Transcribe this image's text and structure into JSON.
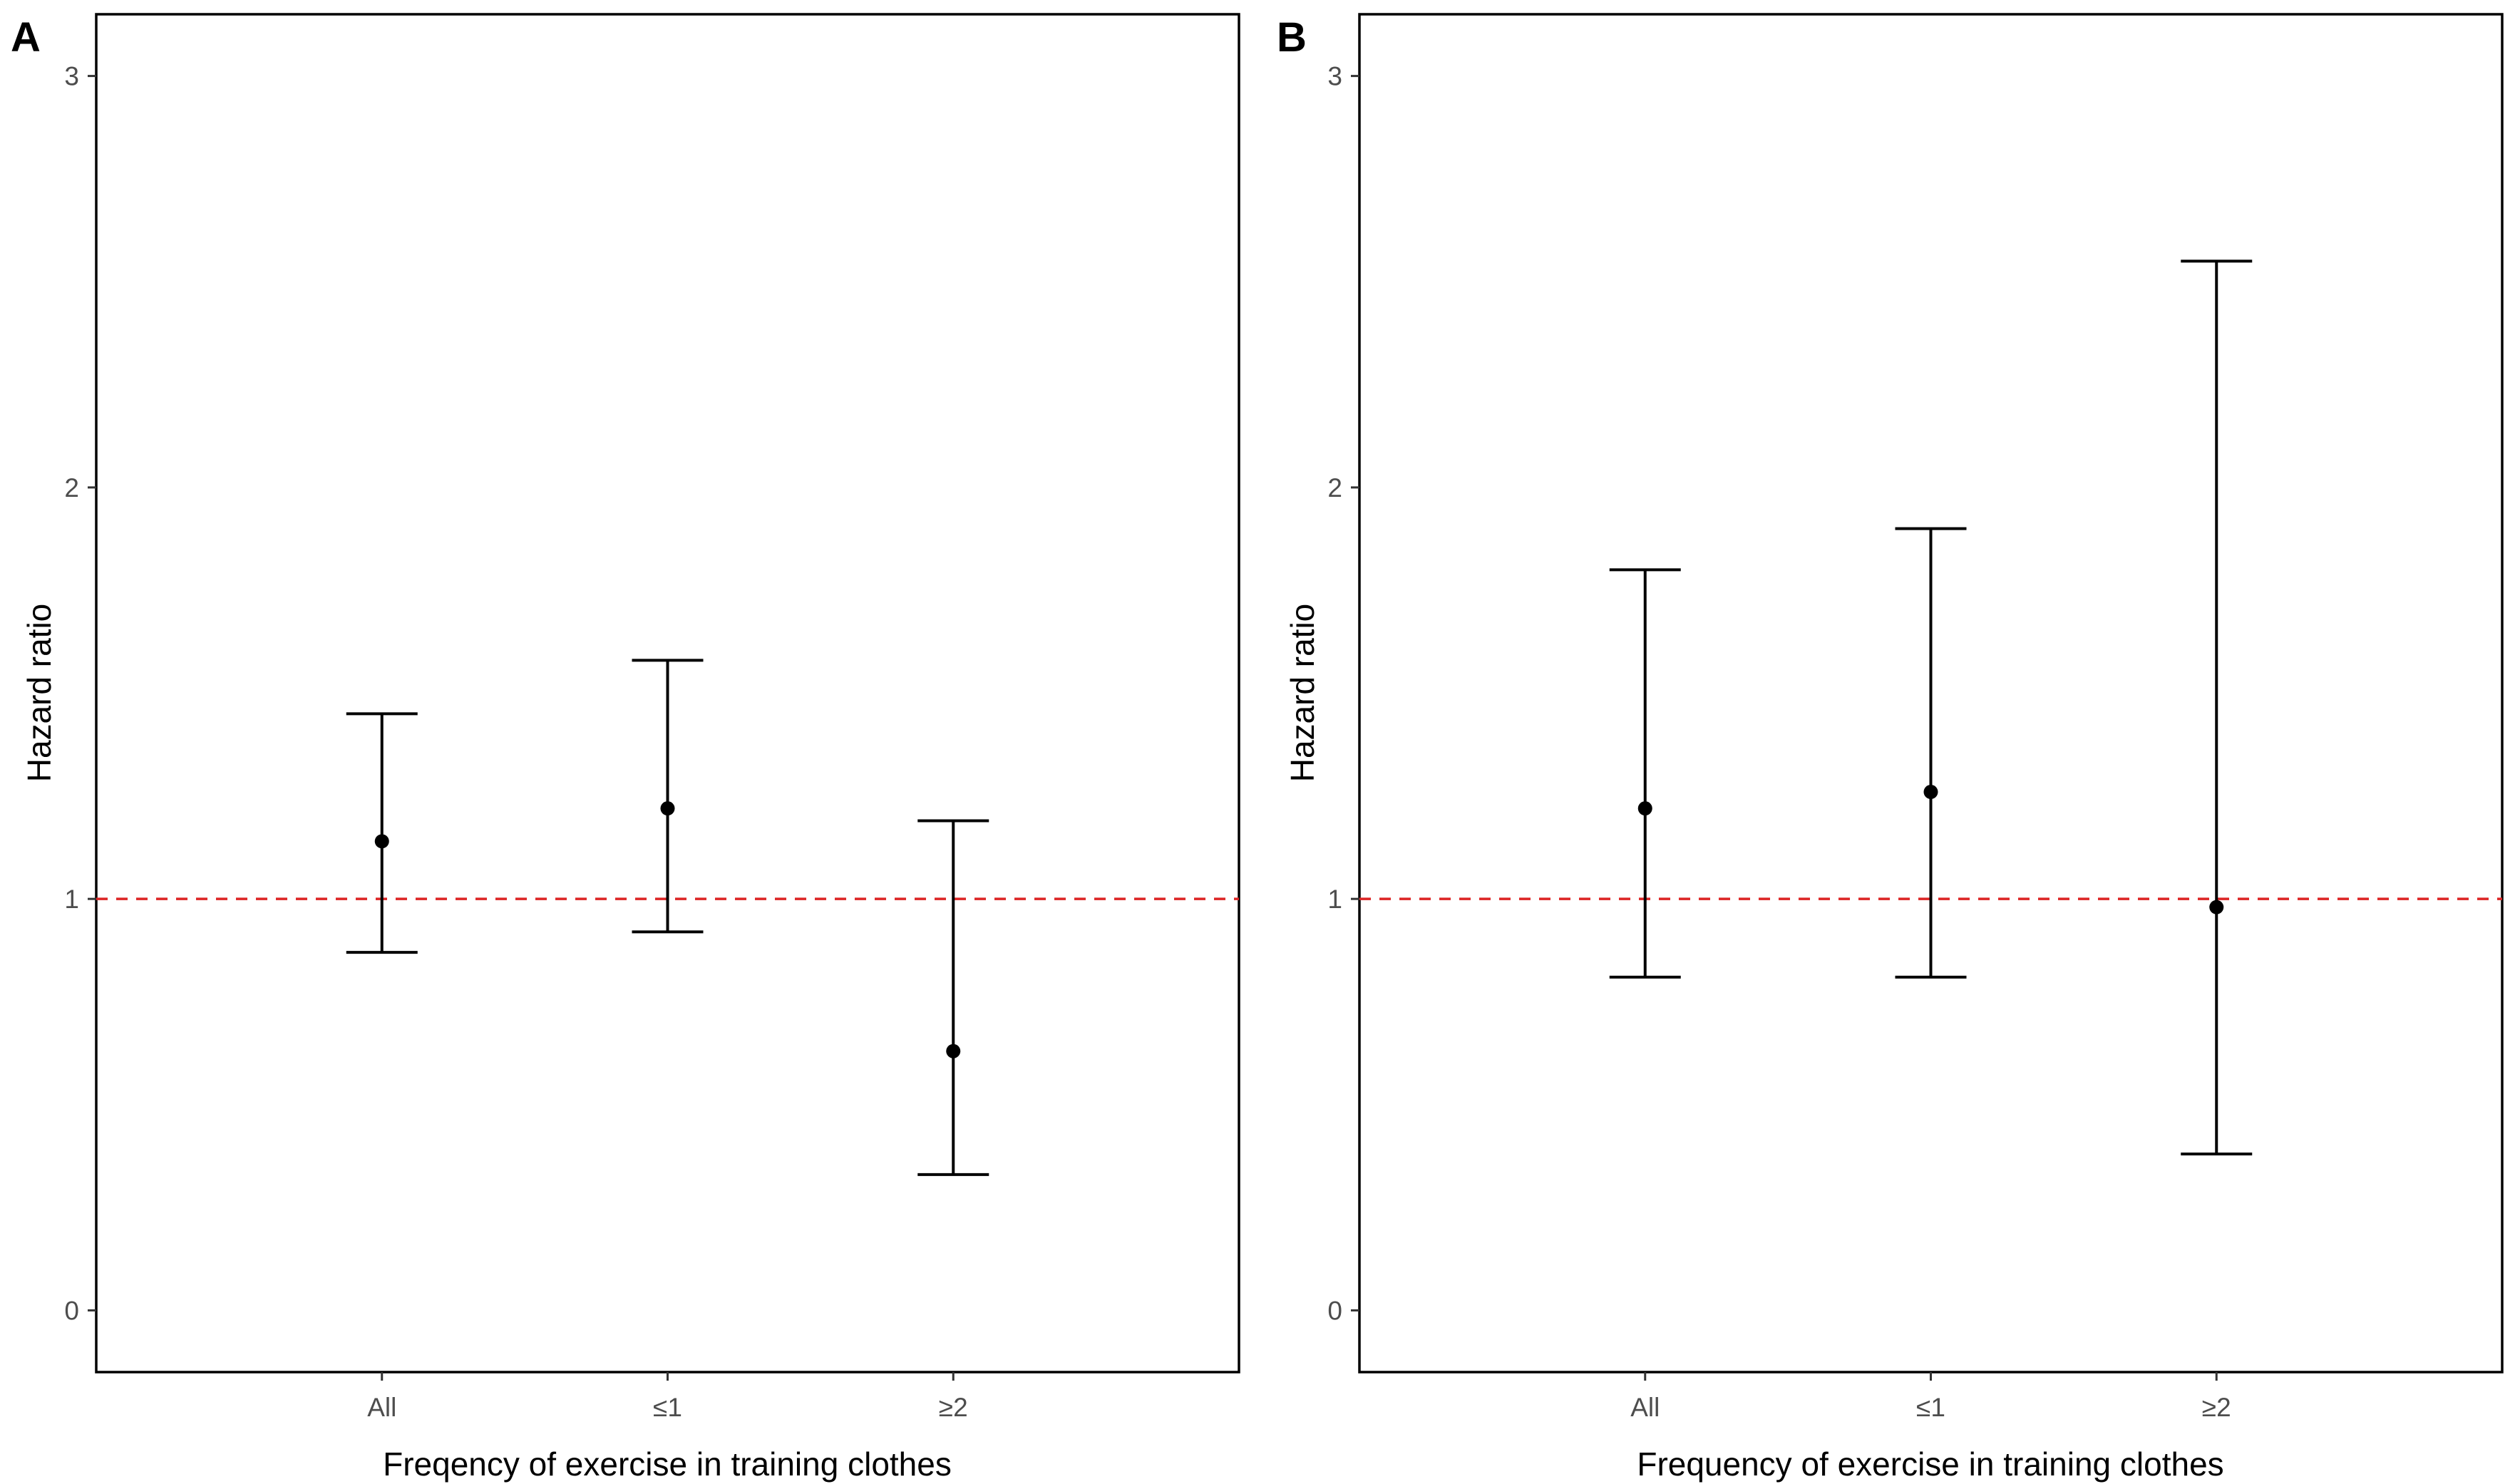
{
  "colors": {
    "reference_line": "#dc2424",
    "points": "#000000",
    "tick_text": "#4d4d4d"
  },
  "chart_data": [
    {
      "panel": "A",
      "type": "errorbar",
      "xlabel": "Freqency of exercise in training clothes",
      "ylabel": "Hazard ratio",
      "categories": [
        "All",
        "≤1",
        "≥2"
      ],
      "estimates": [
        1.14,
        1.22,
        0.63
      ],
      "lower": [
        0.87,
        0.92,
        0.33
      ],
      "upper": [
        1.45,
        1.58,
        1.19
      ],
      "reference_line": 1,
      "ylim": [
        -0.15,
        3.15
      ],
      "yticks": [
        0,
        1,
        2,
        3
      ]
    },
    {
      "panel": "B",
      "type": "errorbar",
      "xlabel": "Frequency of exercise in training clothes",
      "ylabel": "Hazard ratio",
      "categories": [
        "All",
        "≤1",
        "≥2"
      ],
      "estimates": [
        1.22,
        1.26,
        0.98
      ],
      "lower": [
        0.81,
        0.81,
        0.38
      ],
      "upper": [
        1.8,
        1.9,
        2.55
      ],
      "reference_line": 1,
      "ylim": [
        -0.15,
        3.15
      ],
      "yticks": [
        0,
        1,
        2,
        3
      ]
    }
  ]
}
